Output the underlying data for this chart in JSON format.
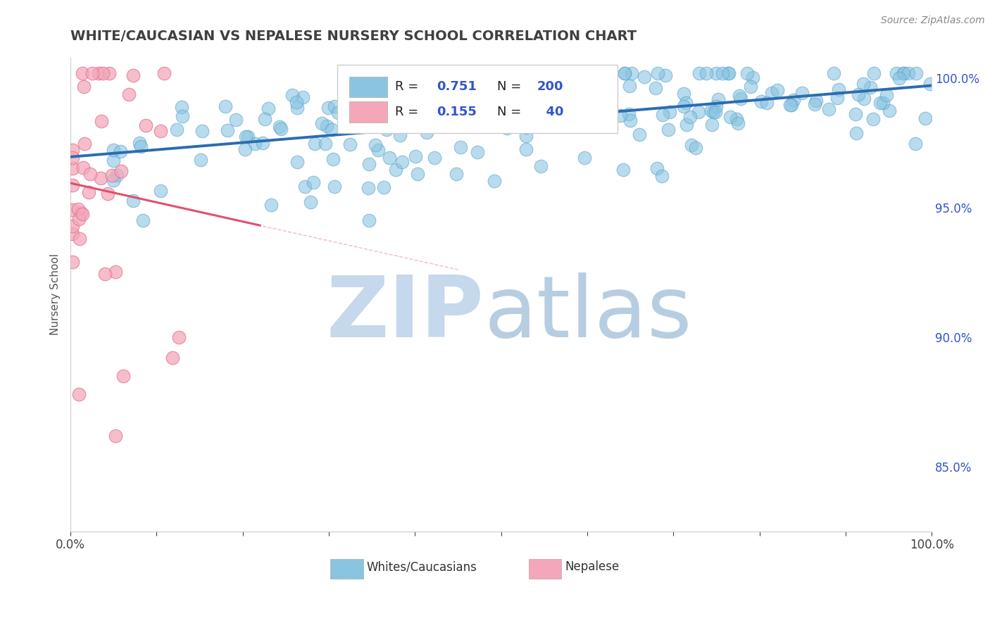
{
  "title": "WHITE/CAUCASIAN VS NEPALESE NURSERY SCHOOL CORRELATION CHART",
  "source": "Source: ZipAtlas.com",
  "ylabel": "Nursery School",
  "x_min": 0.0,
  "x_max": 1.0,
  "y_min": 0.825,
  "y_max": 1.008,
  "y_tick_labels_right": [
    "85.0%",
    "90.0%",
    "95.0%",
    "100.0%"
  ],
  "y_tick_values_right": [
    0.85,
    0.9,
    0.95,
    1.0
  ],
  "blue_R": 0.751,
  "blue_N": 200,
  "pink_R": 0.155,
  "pink_N": 40,
  "blue_color": "#89c4e1",
  "blue_edge_color": "#5ba3cc",
  "blue_line_color": "#2b6cb0",
  "pink_color": "#f4a7b9",
  "pink_edge_color": "#e07090",
  "pink_line_color": "#e05070",
  "legend_color": "#3355cc",
  "background_color": "#ffffff",
  "grid_color": "#cccccc",
  "title_color": "#404040",
  "title_fontsize": 14,
  "axis_label_fontsize": 11,
  "blue_scatter_seed": 7,
  "pink_scatter_seed": 13,
  "watermark_zip_color": "#c5d8ec",
  "watermark_atlas_color": "#b0c8de"
}
